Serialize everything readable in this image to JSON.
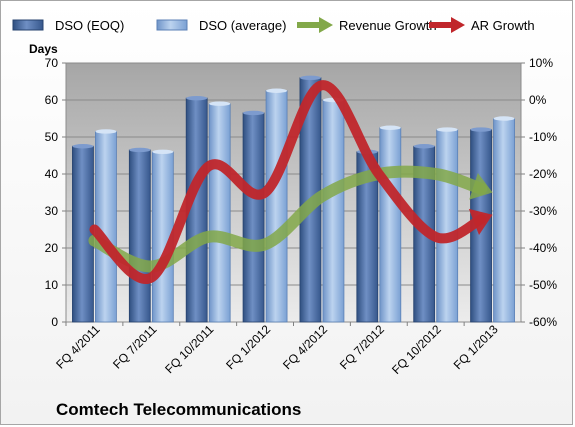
{
  "chart_data": {
    "type": "bar",
    "title": "Comtech Telecommunications",
    "ylabel": "Days",
    "ylim": [
      0,
      70
    ],
    "y2lim": [
      -60,
      10
    ],
    "y_ticks": [
      "0",
      "10",
      "20",
      "30",
      "40",
      "50",
      "60",
      "70"
    ],
    "y2_ticks": [
      "-60%",
      "-50%",
      "-40%",
      "-30%",
      "-20%",
      "-10%",
      "0%",
      "10%"
    ],
    "categories": [
      "FQ 4/2011",
      "FQ 7/2011",
      "FQ 10/2011",
      "FQ 1/2012",
      "FQ 4/2012",
      "FQ 7/2012",
      "FQ 10/2012",
      "FQ 1/2013"
    ],
    "grid": true,
    "legend": "top",
    "bar_series": [
      {
        "name": "DSO (EOQ)",
        "values": [
          47.5,
          46.5,
          60.5,
          56.5,
          66,
          46,
          47.5,
          52
        ],
        "color": "#4f6fa5"
      },
      {
        "name": "DSO (average)",
        "values": [
          51.5,
          46,
          59,
          62.5,
          60,
          52.5,
          52,
          55
        ],
        "color": "#8fb0dc"
      }
    ],
    "line_series": [
      {
        "name": "Revenue Growth",
        "axis": "right",
        "unit": "%",
        "color": "#82a849",
        "values": [
          -38,
          -45,
          -37,
          -39,
          -26,
          -20,
          -20,
          -25
        ]
      },
      {
        "name": "AR Growth",
        "axis": "right",
        "unit": "%",
        "color": "#c0262b",
        "values": [
          -35,
          -48,
          -18,
          -25,
          4,
          -20,
          -37,
          -31
        ]
      }
    ]
  }
}
